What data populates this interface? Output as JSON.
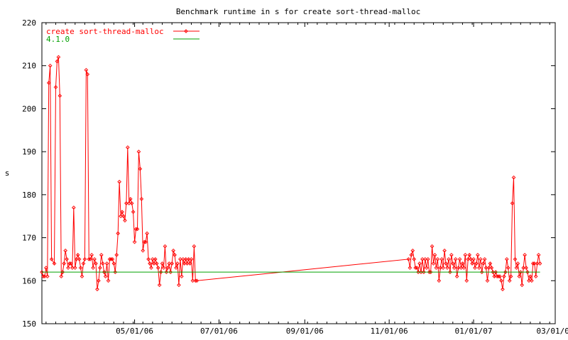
{
  "chart_data": {
    "type": "line",
    "title": "Benchmark runtime in s for create sort-thread-malloc",
    "xlabel": "",
    "ylabel": "s",
    "ylim": [
      150,
      220
    ],
    "yticks": [
      150,
      160,
      170,
      180,
      190,
      200,
      210,
      220
    ],
    "xlim": [
      "2006-02-23",
      "2007-03-01"
    ],
    "xticks": [
      {
        "date": "2006-05-01",
        "label": "05/01/06"
      },
      {
        "date": "2006-07-01",
        "label": "07/01/06"
      },
      {
        "date": "2006-09-01",
        "label": "09/01/06"
      },
      {
        "date": "2006-11-01",
        "label": "11/01/06"
      },
      {
        "date": "2007-01-01",
        "label": "01/01/07"
      },
      {
        "date": "2007-03-01",
        "label": "03/01/07"
      }
    ],
    "grid": false,
    "legend_position": "top-left",
    "series": [
      {
        "name": "create sort-thread-malloc",
        "color": "#ff0000",
        "marker": "diamond",
        "points": [
          [
            "2006-02-23",
            162
          ],
          [
            "2006-02-24",
            161
          ],
          [
            "2006-02-25",
            161
          ],
          [
            "2006-02-26",
            163
          ],
          [
            "2006-02-27",
            161
          ],
          [
            "2006-02-28",
            206
          ],
          [
            "2006-03-01",
            210
          ],
          [
            "2006-03-02",
            165
          ],
          [
            "2006-03-04",
            164
          ],
          [
            "2006-03-05",
            205
          ],
          [
            "2006-03-06",
            211
          ],
          [
            "2006-03-07",
            212
          ],
          [
            "2006-03-08",
            203
          ],
          [
            "2006-03-09",
            161
          ],
          [
            "2006-03-10",
            162
          ],
          [
            "2006-03-11",
            164
          ],
          [
            "2006-03-12",
            167
          ],
          [
            "2006-03-13",
            165
          ],
          [
            "2006-03-14",
            163
          ],
          [
            "2006-03-15",
            164
          ],
          [
            "2006-03-16",
            164
          ],
          [
            "2006-03-17",
            163
          ],
          [
            "2006-03-18",
            177
          ],
          [
            "2006-03-19",
            163
          ],
          [
            "2006-03-20",
            165
          ],
          [
            "2006-03-21",
            166
          ],
          [
            "2006-03-22",
            165
          ],
          [
            "2006-03-23",
            163
          ],
          [
            "2006-03-24",
            161
          ],
          [
            "2006-03-25",
            164
          ],
          [
            "2006-03-26",
            165
          ],
          [
            "2006-03-27",
            209
          ],
          [
            "2006-03-28",
            208
          ],
          [
            "2006-03-29",
            165
          ],
          [
            "2006-03-30",
            165
          ],
          [
            "2006-03-31",
            166
          ],
          [
            "2006-04-01",
            163
          ],
          [
            "2006-04-02",
            165
          ],
          [
            "2006-04-03",
            164
          ],
          [
            "2006-04-04",
            158
          ],
          [
            "2006-04-05",
            160
          ],
          [
            "2006-04-06",
            163
          ],
          [
            "2006-04-07",
            166
          ],
          [
            "2006-04-08",
            164
          ],
          [
            "2006-04-09",
            162
          ],
          [
            "2006-04-10",
            161
          ],
          [
            "2006-04-11",
            164
          ],
          [
            "2006-04-12",
            160
          ],
          [
            "2006-04-13",
            165
          ],
          [
            "2006-04-14",
            165
          ],
          [
            "2006-04-15",
            165
          ],
          [
            "2006-04-16",
            164
          ],
          [
            "2006-04-17",
            162
          ],
          [
            "2006-04-18",
            166
          ],
          [
            "2006-04-19",
            171
          ],
          [
            "2006-04-20",
            183
          ],
          [
            "2006-04-21",
            175
          ],
          [
            "2006-04-22",
            176
          ],
          [
            "2006-04-23",
            175
          ],
          [
            "2006-04-24",
            174
          ],
          [
            "2006-04-25",
            178
          ],
          [
            "2006-04-26",
            191
          ],
          [
            "2006-04-27",
            178
          ],
          [
            "2006-04-28",
            179
          ],
          [
            "2006-04-29",
            178
          ],
          [
            "2006-04-30",
            176
          ],
          [
            "2006-05-01",
            169
          ],
          [
            "2006-05-02",
            172
          ],
          [
            "2006-05-03",
            172
          ],
          [
            "2006-05-04",
            190
          ],
          [
            "2006-05-05",
            186
          ],
          [
            "2006-05-06",
            179
          ],
          [
            "2006-05-07",
            167
          ],
          [
            "2006-05-08",
            169
          ],
          [
            "2006-05-09",
            169
          ],
          [
            "2006-05-10",
            171
          ],
          [
            "2006-05-11",
            165
          ],
          [
            "2006-05-12",
            164
          ],
          [
            "2006-05-13",
            163
          ],
          [
            "2006-05-14",
            165
          ],
          [
            "2006-05-15",
            164
          ],
          [
            "2006-05-16",
            165
          ],
          [
            "2006-05-17",
            164
          ],
          [
            "2006-05-18",
            163
          ],
          [
            "2006-05-19",
            159
          ],
          [
            "2006-05-20",
            162
          ],
          [
            "2006-05-21",
            164
          ],
          [
            "2006-05-22",
            163
          ],
          [
            "2006-05-23",
            168
          ],
          [
            "2006-05-24",
            162
          ],
          [
            "2006-05-25",
            163
          ],
          [
            "2006-05-26",
            164
          ],
          [
            "2006-05-27",
            162
          ],
          [
            "2006-05-28",
            164
          ],
          [
            "2006-05-29",
            167
          ],
          [
            "2006-05-30",
            166
          ],
          [
            "2006-05-31",
            163
          ],
          [
            "2006-06-01",
            164
          ],
          [
            "2006-06-02",
            159
          ],
          [
            "2006-06-03",
            165
          ],
          [
            "2006-06-04",
            161
          ],
          [
            "2006-06-05",
            165
          ],
          [
            "2006-06-06",
            164
          ],
          [
            "2006-06-07",
            165
          ],
          [
            "2006-06-08",
            164
          ],
          [
            "2006-06-09",
            165
          ],
          [
            "2006-06-10",
            164
          ],
          [
            "2006-06-11",
            165
          ],
          [
            "2006-06-12",
            160
          ],
          [
            "2006-06-13",
            168
          ],
          [
            "2006-06-14",
            160
          ],
          [
            "2006-06-15",
            160
          ],
          [
            "2006-11-15",
            165
          ],
          [
            "2006-11-16",
            163
          ],
          [
            "2006-11-17",
            166
          ],
          [
            "2006-11-18",
            167
          ],
          [
            "2006-11-19",
            165
          ],
          [
            "2006-11-20",
            163
          ],
          [
            "2006-11-21",
            163
          ],
          [
            "2006-11-22",
            162
          ],
          [
            "2006-11-23",
            164
          ],
          [
            "2006-11-24",
            162
          ],
          [
            "2006-11-25",
            165
          ],
          [
            "2006-11-26",
            162
          ],
          [
            "2006-11-27",
            165
          ],
          [
            "2006-11-28",
            163
          ],
          [
            "2006-11-29",
            165
          ],
          [
            "2006-11-30",
            162
          ],
          [
            "2006-12-01",
            162
          ],
          [
            "2006-12-02",
            168
          ],
          [
            "2006-12-03",
            164
          ],
          [
            "2006-12-04",
            166
          ],
          [
            "2006-12-05",
            163
          ],
          [
            "2006-12-06",
            165
          ],
          [
            "2006-12-07",
            160
          ],
          [
            "2006-12-08",
            163
          ],
          [
            "2006-12-09",
            165
          ],
          [
            "2006-12-10",
            163
          ],
          [
            "2006-12-11",
            167
          ],
          [
            "2006-12-12",
            164
          ],
          [
            "2006-12-13",
            163
          ],
          [
            "2006-12-14",
            165
          ],
          [
            "2006-12-15",
            162
          ],
          [
            "2006-12-16",
            166
          ],
          [
            "2006-12-17",
            164
          ],
          [
            "2006-12-18",
            163
          ],
          [
            "2006-12-19",
            165
          ],
          [
            "2006-12-20",
            161
          ],
          [
            "2006-12-21",
            163
          ],
          [
            "2006-12-22",
            165
          ],
          [
            "2006-12-23",
            163
          ],
          [
            "2006-12-24",
            164
          ],
          [
            "2006-12-25",
            163
          ],
          [
            "2006-12-26",
            166
          ],
          [
            "2006-12-27",
            160
          ],
          [
            "2006-12-28",
            165
          ],
          [
            "2006-12-29",
            166
          ],
          [
            "2006-12-30",
            165
          ],
          [
            "2006-12-31",
            164
          ],
          [
            "2007-01-01",
            165
          ],
          [
            "2007-01-02",
            163
          ],
          [
            "2007-01-03",
            164
          ],
          [
            "2007-01-04",
            166
          ],
          [
            "2007-01-05",
            163
          ],
          [
            "2007-01-06",
            165
          ],
          [
            "2007-01-07",
            162
          ],
          [
            "2007-01-08",
            164
          ],
          [
            "2007-01-09",
            165
          ],
          [
            "2007-01-10",
            163
          ],
          [
            "2007-01-11",
            160
          ],
          [
            "2007-01-12",
            163
          ],
          [
            "2007-01-13",
            164
          ],
          [
            "2007-01-14",
            163
          ],
          [
            "2007-01-15",
            162
          ],
          [
            "2007-01-16",
            161
          ],
          [
            "2007-01-17",
            162
          ],
          [
            "2007-01-18",
            161
          ],
          [
            "2007-01-19",
            161
          ],
          [
            "2007-01-20",
            161
          ],
          [
            "2007-01-21",
            160
          ],
          [
            "2007-01-22",
            158
          ],
          [
            "2007-01-23",
            161
          ],
          [
            "2007-01-24",
            162
          ],
          [
            "2007-01-25",
            165
          ],
          [
            "2007-01-26",
            163
          ],
          [
            "2007-01-27",
            160
          ],
          [
            "2007-01-28",
            161
          ],
          [
            "2007-01-29",
            178
          ],
          [
            "2007-01-30",
            184
          ],
          [
            "2007-01-31",
            165
          ],
          [
            "2007-02-01",
            163
          ],
          [
            "2007-02-02",
            164
          ],
          [
            "2007-02-03",
            161
          ],
          [
            "2007-02-04",
            162
          ],
          [
            "2007-02-05",
            159
          ],
          [
            "2007-02-06",
            163
          ],
          [
            "2007-02-07",
            166
          ],
          [
            "2007-02-08",
            163
          ],
          [
            "2007-02-09",
            162
          ],
          [
            "2007-02-10",
            160
          ],
          [
            "2007-02-11",
            161
          ],
          [
            "2007-02-12",
            160
          ],
          [
            "2007-02-13",
            164
          ],
          [
            "2007-02-14",
            164
          ],
          [
            "2007-02-15",
            161
          ],
          [
            "2007-02-16",
            164
          ],
          [
            "2007-02-17",
            166
          ],
          [
            "2007-02-18",
            164
          ]
        ]
      },
      {
        "name": "4.1.0",
        "color": "#00a000",
        "marker": "none",
        "points": [
          [
            "2006-02-23",
            162
          ],
          [
            "2007-02-18",
            162
          ]
        ]
      }
    ]
  }
}
